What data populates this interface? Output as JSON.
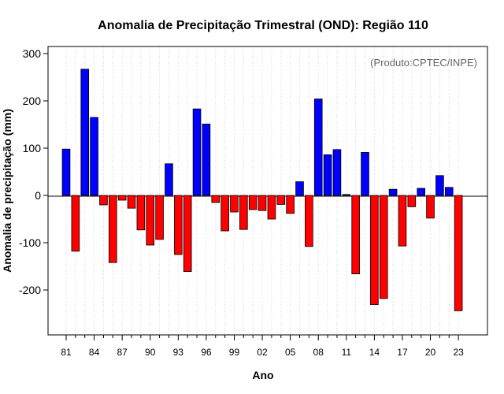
{
  "chart_data": {
    "type": "bar",
    "title": "Anomalia de Precipitação Trimestral (OND): Região 110",
    "xlabel": "Ano",
    "ylabel": "Anomalia de precipitação (mm)",
    "credit": "(Produto:CPTEC/INPE)",
    "ylim": [
      -295,
      315
    ],
    "yticks": [
      -200,
      -100,
      0,
      100,
      200,
      300
    ],
    "ytick_labels": [
      "-200",
      "-100",
      "0",
      "100",
      "200",
      "300"
    ],
    "categories": [
      "81",
      "82",
      "83",
      "84",
      "85",
      "86",
      "87",
      "88",
      "89",
      "90",
      "91",
      "92",
      "93",
      "94",
      "95",
      "96",
      "97",
      "98",
      "99",
      "00",
      "01",
      "02",
      "03",
      "04",
      "05",
      "06",
      "07",
      "08",
      "09",
      "10",
      "11",
      "12",
      "13",
      "14",
      "15",
      "16",
      "17",
      "18",
      "19",
      "20",
      "21",
      "22",
      "23"
    ],
    "xtick_labels": [
      "81",
      "84",
      "87",
      "90",
      "93",
      "96",
      "99",
      "02",
      "05",
      "08",
      "11",
      "14",
      "17",
      "20",
      "23"
    ],
    "values": [
      98,
      -118,
      267,
      165,
      -20,
      -142,
      -10,
      -27,
      -73,
      -105,
      -93,
      67,
      -125,
      -161,
      183,
      151,
      -15,
      -75,
      -35,
      -72,
      -30,
      -32,
      -50,
      -19,
      -38,
      29,
      -108,
      204,
      86,
      97,
      2,
      -166,
      91,
      -231,
      -218,
      13,
      -107,
      -24,
      15,
      -48,
      42,
      17,
      -244
    ],
    "positive_color": "#0000ff",
    "negative_color": "#ff0000",
    "grid": true
  }
}
